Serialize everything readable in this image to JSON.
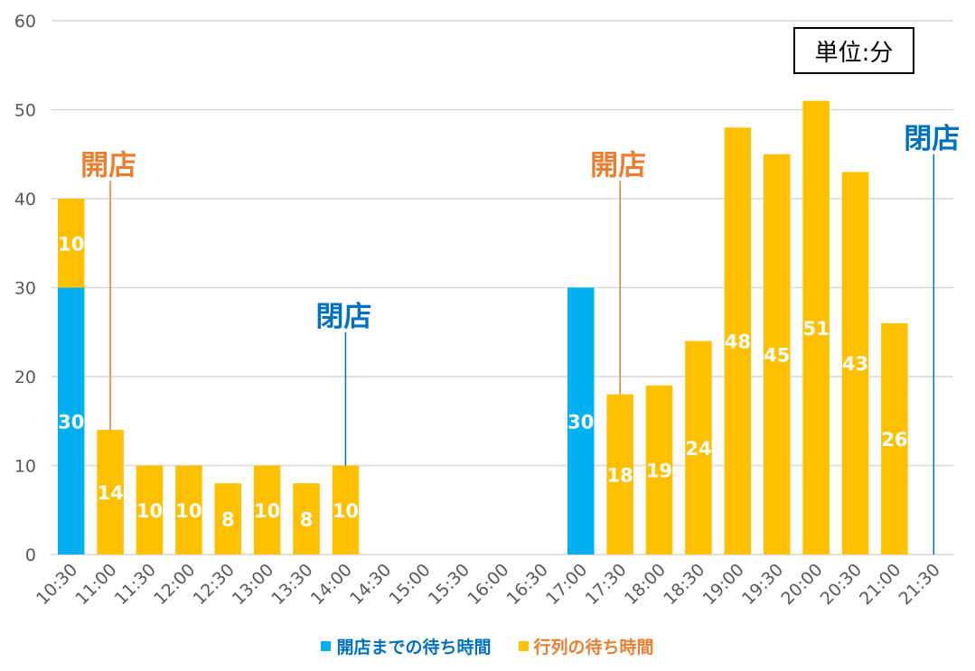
{
  "chart_data": {
    "type": "bar",
    "stacked": true,
    "categories": [
      "10:30",
      "11:00",
      "11:30",
      "12:00",
      "12:30",
      "13:00",
      "13:30",
      "14:00",
      "14:30",
      "15:00",
      "15:30",
      "16:00",
      "16:30",
      "17:00",
      "17:30",
      "18:00",
      "18:30",
      "19:00",
      "19:30",
      "20:00",
      "20:30",
      "21:00",
      "21:30"
    ],
    "series": [
      {
        "name": "開店までの待ち時間",
        "color": "#00B0F0",
        "values": [
          30,
          0,
          0,
          0,
          0,
          0,
          0,
          0,
          0,
          0,
          0,
          0,
          0,
          30,
          0,
          0,
          0,
          0,
          0,
          0,
          0,
          0,
          0
        ]
      },
      {
        "name": "行列の待ち時間",
        "color": "#FFC000",
        "values": [
          10,
          14,
          10,
          10,
          8,
          10,
          8,
          10,
          0,
          0,
          0,
          0,
          0,
          0,
          18,
          19,
          24,
          48,
          45,
          51,
          43,
          26,
          0
        ]
      }
    ],
    "ylim": [
      0,
      60
    ],
    "yticks": [
      0,
      10,
      20,
      30,
      40,
      50,
      60
    ],
    "grid": true,
    "legend_position": "bottom",
    "unit_label": "単位:分",
    "annotations": [
      {
        "text": "開店",
        "category": "11:00",
        "value_top": 42,
        "value_bottom": 14,
        "color": "#ED7D31"
      },
      {
        "text": "閉店",
        "category": "14:00",
        "value_top": 25,
        "value_bottom": 10,
        "color": "#0070C0"
      },
      {
        "text": "開店",
        "category": "17:30",
        "value_top": 42,
        "value_bottom": 18,
        "color": "#ED7D31"
      },
      {
        "text": "閉店",
        "category": "21:30",
        "value_top": 45,
        "value_bottom": 0,
        "color": "#0070C0"
      }
    ]
  }
}
